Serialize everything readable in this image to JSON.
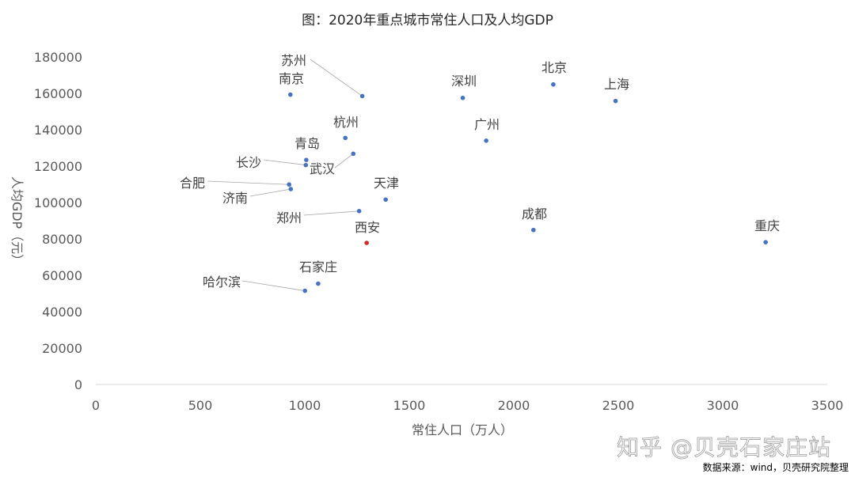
{
  "chart_data": {
    "type": "scatter",
    "title": "图：2020年重点城市常住人口及人均GDP",
    "xlabel": "常住人口（万人）",
    "ylabel": "人均GDP（元）",
    "xlim": [
      0,
      3500
    ],
    "ylim": [
      0,
      180000
    ],
    "xticks": [
      "0",
      "500",
      "1000",
      "1500",
      "2000",
      "2500",
      "3000",
      "3500"
    ],
    "yticks": [
      "0",
      "20000",
      "40000",
      "60000",
      "80000",
      "100000",
      "120000",
      "140000",
      "160000",
      "180000"
    ],
    "grid": false,
    "legend": "none",
    "points": [
      {
        "label": "北京",
        "x": 2189,
        "y": 164900
      },
      {
        "label": "上海",
        "x": 2487,
        "y": 155800
      },
      {
        "label": "深圳",
        "x": 1756,
        "y": 157500
      },
      {
        "label": "苏州",
        "x": 1275,
        "y": 158500
      },
      {
        "label": "南京",
        "x": 931,
        "y": 159300
      },
      {
        "label": "广州",
        "x": 1868,
        "y": 134000
      },
      {
        "label": "杭州",
        "x": 1194,
        "y": 135500
      },
      {
        "label": "武汉",
        "x": 1232,
        "y": 126800
      },
      {
        "label": "青岛",
        "x": 1007,
        "y": 123400
      },
      {
        "label": "长沙",
        "x": 1005,
        "y": 120600
      },
      {
        "label": "合肥",
        "x": 925,
        "y": 109900
      },
      {
        "label": "济南",
        "x": 933,
        "y": 107400
      },
      {
        "label": "天津",
        "x": 1387,
        "y": 101600
      },
      {
        "label": "郑州",
        "x": 1260,
        "y": 95300
      },
      {
        "label": "成都",
        "x": 2094,
        "y": 84900
      },
      {
        "label": "重庆",
        "x": 3205,
        "y": 78200
      },
      {
        "label": "西安",
        "x": 1296,
        "y": 77800,
        "highlight": true
      },
      {
        "label": "石家庄",
        "x": 1064,
        "y": 55400
      },
      {
        "label": "哈尔滨",
        "x": 1001,
        "y": 51500
      }
    ],
    "colors": {
      "point": "#4472c4",
      "highlight": "#d62728"
    }
  },
  "watermark": "知乎 @贝壳石家庄站",
  "source_note": "数据来源：wind，贝壳研究院整理"
}
